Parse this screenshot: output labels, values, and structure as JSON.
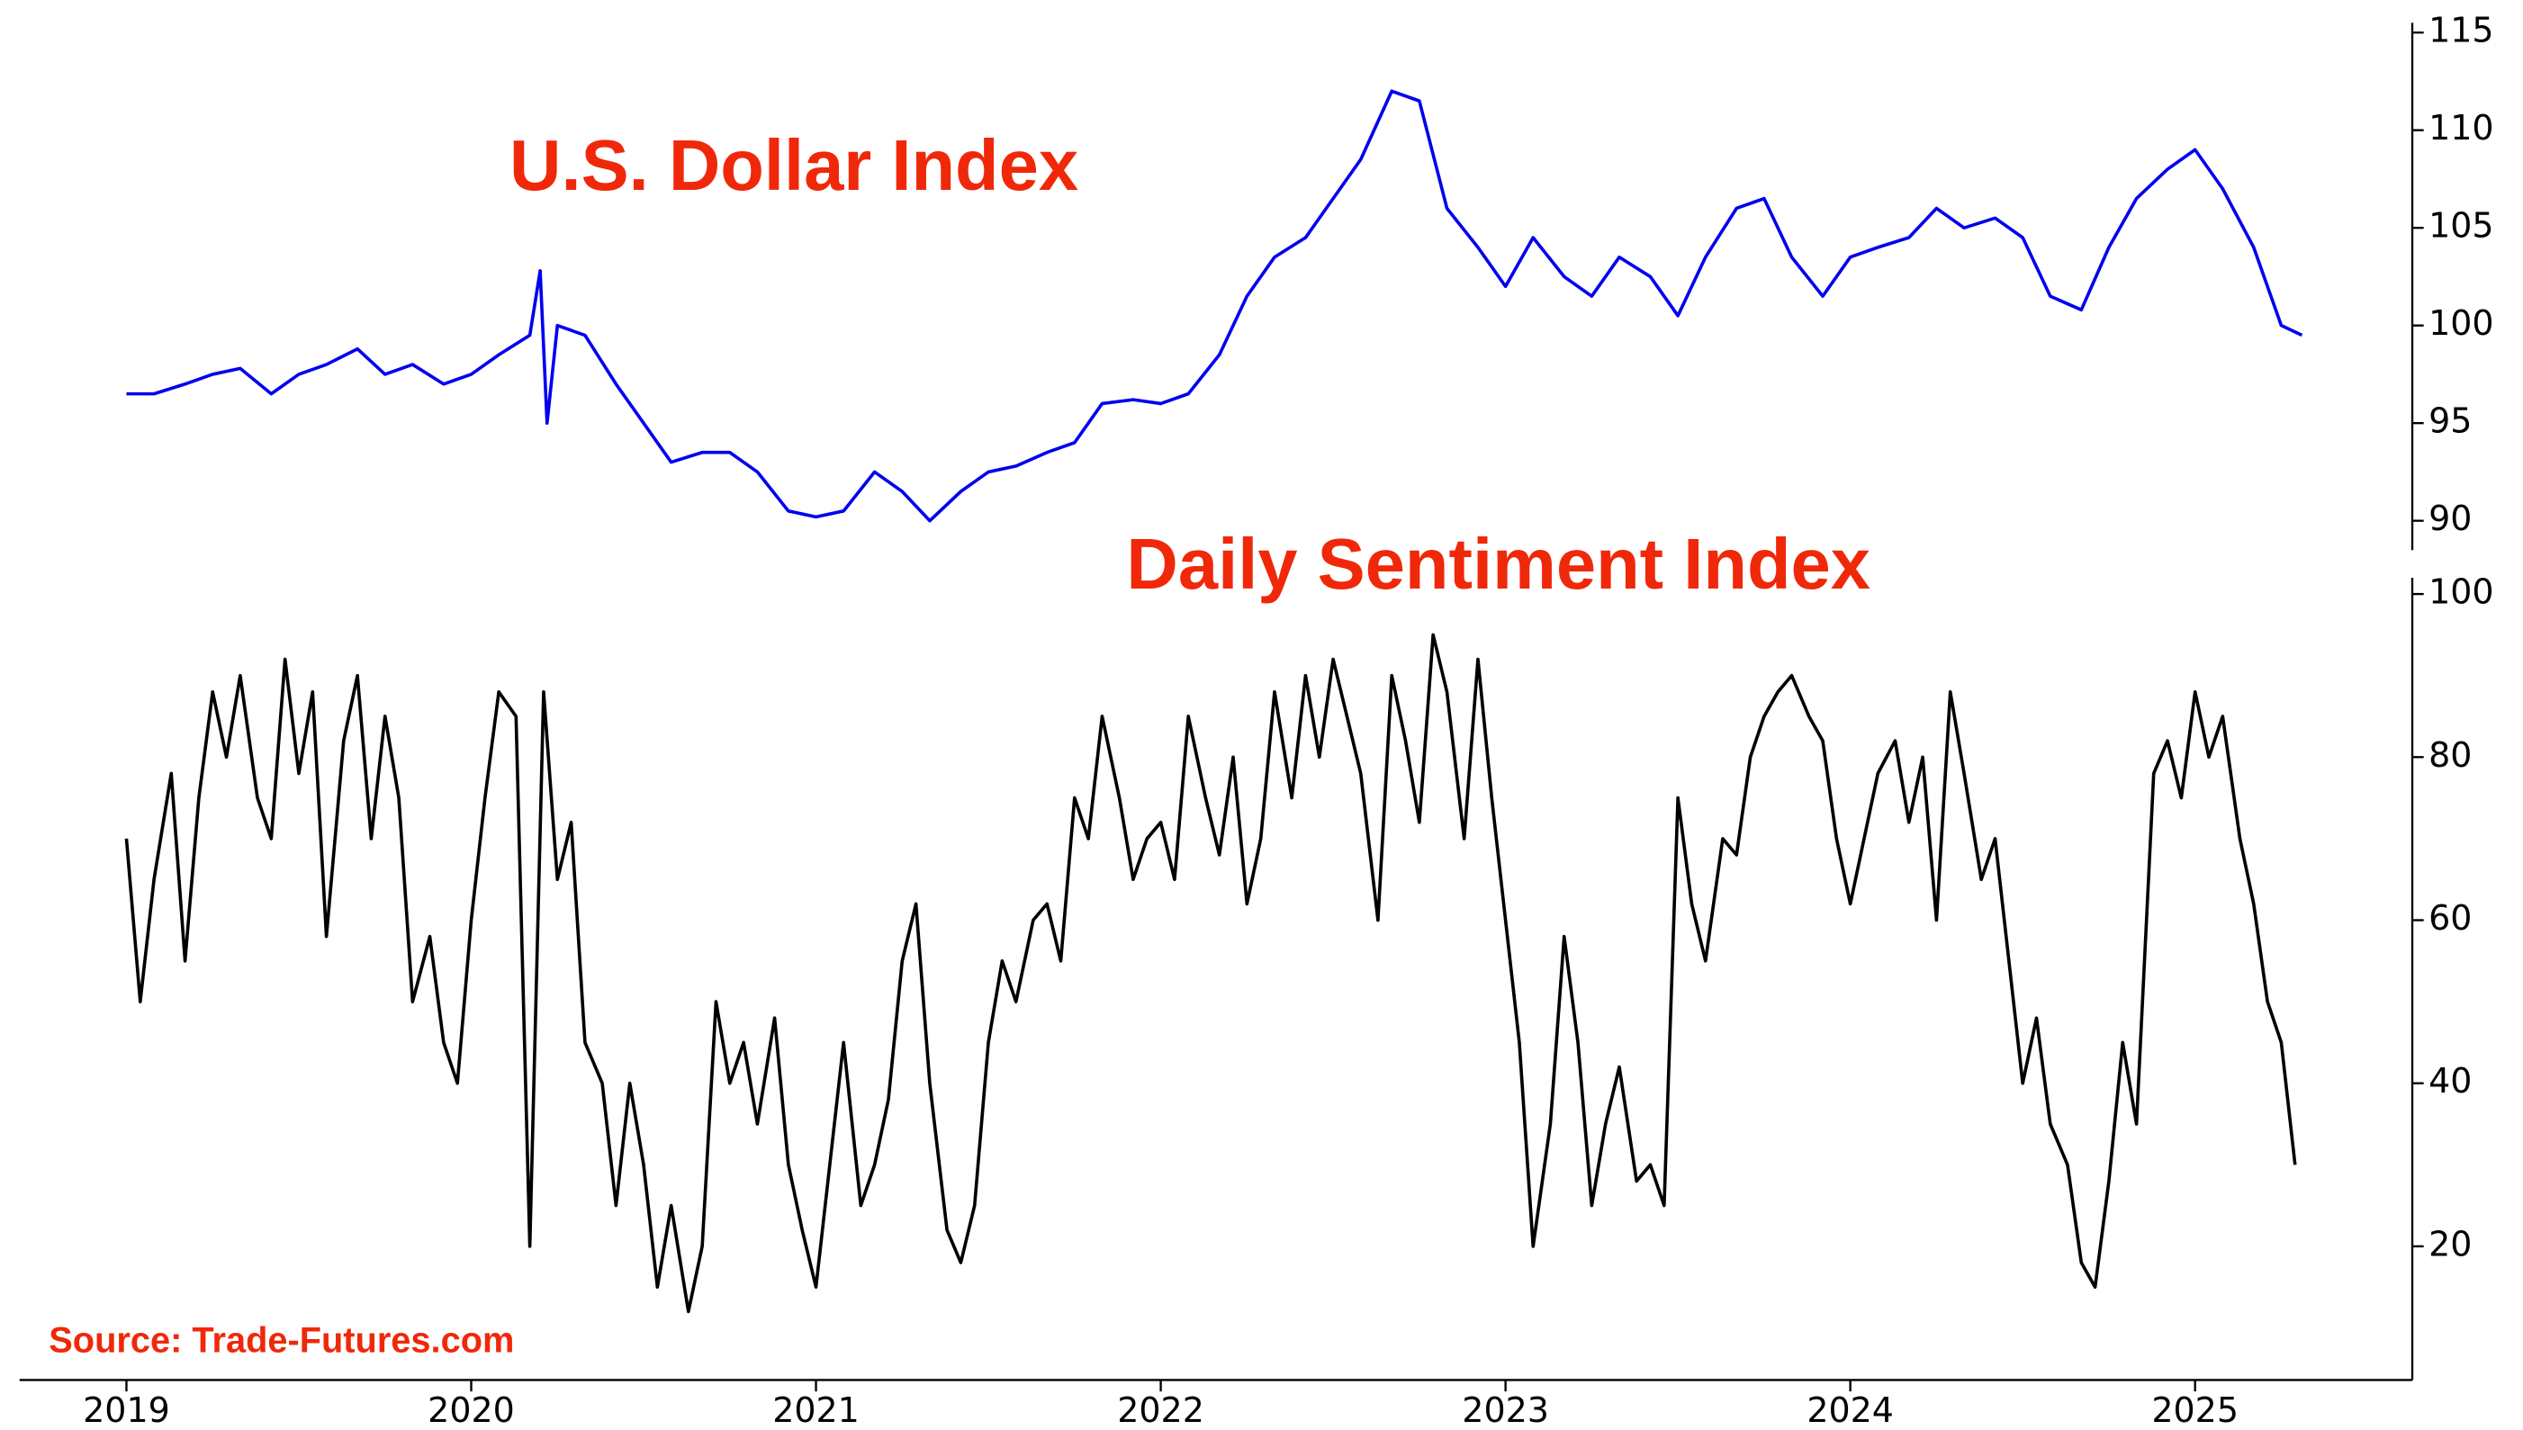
{
  "chart_data": [
    {
      "type": "line",
      "title": "U.S. Dollar Index",
      "color": "#0000ee",
      "x": [
        2019.0,
        2019.08,
        2019.17,
        2019.25,
        2019.33,
        2019.42,
        2019.5,
        2019.58,
        2019.67,
        2019.75,
        2019.83,
        2019.92,
        2020.0,
        2020.08,
        2020.17,
        2020.2,
        2020.22,
        2020.25,
        2020.33,
        2020.42,
        2020.5,
        2020.58,
        2020.67,
        2020.75,
        2020.83,
        2020.92,
        2021.0,
        2021.08,
        2021.17,
        2021.25,
        2021.33,
        2021.42,
        2021.5,
        2021.58,
        2021.67,
        2021.75,
        2021.83,
        2021.92,
        2022.0,
        2022.08,
        2022.17,
        2022.25,
        2022.33,
        2022.42,
        2022.5,
        2022.58,
        2022.67,
        2022.75,
        2022.83,
        2022.92,
        2023.0,
        2023.08,
        2023.17,
        2023.25,
        2023.33,
        2023.42,
        2023.5,
        2023.58,
        2023.67,
        2023.75,
        2023.83,
        2023.92,
        2024.0,
        2024.08,
        2024.17,
        2024.25,
        2024.33,
        2024.42,
        2024.5,
        2024.58,
        2024.67,
        2024.75,
        2024.83,
        2024.92,
        2025.0,
        2025.08,
        2025.17,
        2025.25,
        2025.31
      ],
      "values": [
        96.5,
        96.5,
        97,
        97.5,
        97.8,
        96.5,
        97.5,
        98,
        98.8,
        97.5,
        98,
        97,
        97.5,
        98.5,
        99.5,
        102.8,
        95,
        100,
        99.5,
        97,
        95,
        93,
        93.5,
        93.5,
        92.5,
        90.5,
        90.2,
        90.5,
        92.5,
        91.5,
        90,
        91.5,
        92.5,
        92.8,
        93.5,
        94,
        96,
        96.2,
        96,
        96.5,
        98.5,
        101.5,
        103.5,
        104.5,
        106.5,
        108.5,
        112,
        111.5,
        106,
        104,
        102,
        104.5,
        102.5,
        101.5,
        103.5,
        102.5,
        100.5,
        103.5,
        106,
        106.5,
        103.5,
        101.5,
        103.5,
        104,
        104.5,
        106,
        105,
        105.5,
        104.5,
        101.5,
        100.8,
        104,
        106.5,
        108,
        109,
        107,
        104,
        100,
        99.5
      ],
      "xlim": [
        2018.69,
        2025.63
      ],
      "ylim": [
        88.5,
        115.5
      ],
      "yticks": [
        90,
        95,
        100,
        105,
        110,
        115
      ]
    },
    {
      "type": "line",
      "title": "Daily Sentiment Index",
      "color": "#000000",
      "x": [
        2019.0,
        2019.04,
        2019.08,
        2019.13,
        2019.17,
        2019.21,
        2019.25,
        2019.29,
        2019.33,
        2019.38,
        2019.42,
        2019.46,
        2019.5,
        2019.54,
        2019.58,
        2019.63,
        2019.67,
        2019.71,
        2019.75,
        2019.79,
        2019.83,
        2019.88,
        2019.92,
        2019.96,
        2020.0,
        2020.04,
        2020.08,
        2020.13,
        2020.17,
        2020.21,
        2020.25,
        2020.29,
        2020.33,
        2020.38,
        2020.42,
        2020.46,
        2020.5,
        2020.54,
        2020.58,
        2020.63,
        2020.67,
        2020.71,
        2020.75,
        2020.79,
        2020.83,
        2020.88,
        2020.92,
        2020.96,
        2021.0,
        2021.04,
        2021.08,
        2021.13,
        2021.17,
        2021.21,
        2021.25,
        2021.29,
        2021.33,
        2021.38,
        2021.42,
        2021.46,
        2021.5,
        2021.54,
        2021.58,
        2021.63,
        2021.67,
        2021.71,
        2021.75,
        2021.79,
        2021.83,
        2021.88,
        2021.92,
        2021.96,
        2022.0,
        2022.04,
        2022.08,
        2022.13,
        2022.17,
        2022.21,
        2022.25,
        2022.29,
        2022.33,
        2022.38,
        2022.42,
        2022.46,
        2022.5,
        2022.54,
        2022.58,
        2022.63,
        2022.67,
        2022.71,
        2022.75,
        2022.79,
        2022.83,
        2022.88,
        2022.92,
        2022.96,
        2023.0,
        2023.04,
        2023.08,
        2023.13,
        2023.17,
        2023.21,
        2023.25,
        2023.29,
        2023.33,
        2023.38,
        2023.42,
        2023.46,
        2023.5,
        2023.54,
        2023.58,
        2023.63,
        2023.67,
        2023.71,
        2023.75,
        2023.79,
        2023.83,
        2023.88,
        2023.92,
        2023.96,
        2024.0,
        2024.04,
        2024.08,
        2024.13,
        2024.17,
        2024.21,
        2024.25,
        2024.29,
        2024.33,
        2024.38,
        2024.42,
        2024.46,
        2024.5,
        2024.54,
        2024.58,
        2024.63,
        2024.67,
        2024.71,
        2024.75,
        2024.79,
        2024.83,
        2024.88,
        2024.92,
        2024.96,
        2025.0,
        2025.04,
        2025.08,
        2025.13,
        2025.17,
        2025.21,
        2025.25,
        2025.29
      ],
      "values": [
        70,
        50,
        65,
        78,
        55,
        75,
        88,
        80,
        90,
        75,
        70,
        92,
        78,
        88,
        58,
        82,
        90,
        70,
        85,
        75,
        50,
        58,
        45,
        40,
        60,
        75,
        88,
        85,
        20,
        88,
        65,
        72,
        45,
        40,
        25,
        40,
        30,
        15,
        25,
        12,
        20,
        50,
        40,
        45,
        35,
        48,
        30,
        22,
        15,
        30,
        45,
        25,
        30,
        38,
        55,
        62,
        40,
        22,
        18,
        25,
        45,
        55,
        50,
        60,
        62,
        55,
        75,
        70,
        85,
        75,
        65,
        70,
        72,
        65,
        85,
        75,
        68,
        80,
        62,
        70,
        88,
        75,
        90,
        80,
        92,
        85,
        78,
        60,
        90,
        82,
        72,
        95,
        88,
        70,
        92,
        75,
        60,
        45,
        20,
        35,
        58,
        45,
        25,
        35,
        42,
        28,
        30,
        25,
        75,
        62,
        55,
        70,
        68,
        80,
        85,
        88,
        90,
        85,
        82,
        70,
        62,
        70,
        78,
        82,
        72,
        80,
        60,
        88,
        78,
        65,
        70,
        55,
        40,
        48,
        35,
        30,
        18,
        15,
        28,
        45,
        35,
        78,
        82,
        75,
        88,
        80,
        85,
        70,
        62,
        50,
        45,
        30
      ],
      "xlim": [
        2018.69,
        2025.63
      ],
      "ylim": [
        3.6,
        102
      ],
      "yticks": [
        20,
        40,
        60,
        80,
        100
      ],
      "xticks": [
        2019,
        2020,
        2021,
        2022,
        2023,
        2024,
        2025
      ],
      "source": "Source: Trade-Futures.com"
    }
  ]
}
